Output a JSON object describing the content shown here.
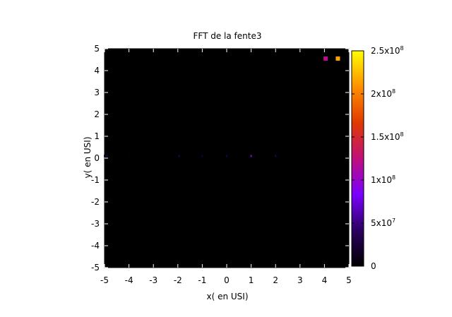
{
  "chart_data": {
    "type": "heatmap",
    "title": "FFT de la fente3",
    "xlabel": "x( en USI)",
    "ylabel": "y( en USI)",
    "xlim": [
      -5,
      5
    ],
    "ylim": [
      -5,
      5
    ],
    "xticks": [
      "-5",
      "-4",
      "-3",
      "-2",
      "-1",
      "0",
      "1",
      "2",
      "3",
      "4",
      "5"
    ],
    "yticks": [
      "5",
      "4",
      "3",
      "2",
      "1",
      "0",
      "-1",
      "-2",
      "-3",
      "-4",
      "-5"
    ],
    "background": "#000000",
    "grid": false,
    "colorbar": {
      "min": 0,
      "max": 250000000,
      "ticks": [
        {
          "value": 0,
          "mantissa": "0",
          "exponent": ""
        },
        {
          "value": 50000000,
          "mantissa": "5x10",
          "exponent": "7"
        },
        {
          "value": 100000000,
          "mantissa": "1x10",
          "exponent": "8"
        },
        {
          "value": 150000000,
          "mantissa": "1.5x10",
          "exponent": "8"
        },
        {
          "value": 200000000,
          "mantissa": "2x10",
          "exponent": "8"
        },
        {
          "value": 250000000,
          "mantissa": "2.5x10",
          "exponent": "8"
        }
      ],
      "palette": [
        "#000000",
        "#2b0060",
        "#7a00ff",
        "#c0107a",
        "#e03a00",
        "#ff9000",
        "#ffff00"
      ]
    },
    "points": [
      {
        "x": -5.0,
        "y": 0.1,
        "value": 20000000
      },
      {
        "x": -4.9,
        "y": 0.1,
        "value": 30000000
      },
      {
        "x": -4.0,
        "y": 0.1,
        "value": 6000000
      },
      {
        "x": -1.95,
        "y": 0.1,
        "value": 35000000
      },
      {
        "x": -1.0,
        "y": 0.1,
        "value": 25000000
      },
      {
        "x": 0.0,
        "y": 0.1,
        "value": 30000000
      },
      {
        "x": 1.0,
        "y": 0.1,
        "value": 90000000
      },
      {
        "x": 2.0,
        "y": 0.1,
        "value": 40000000
      },
      {
        "x": 4.05,
        "y": 4.55,
        "value": 120000000
      },
      {
        "x": 4.55,
        "y": 4.55,
        "value": 215000000
      }
    ]
  }
}
